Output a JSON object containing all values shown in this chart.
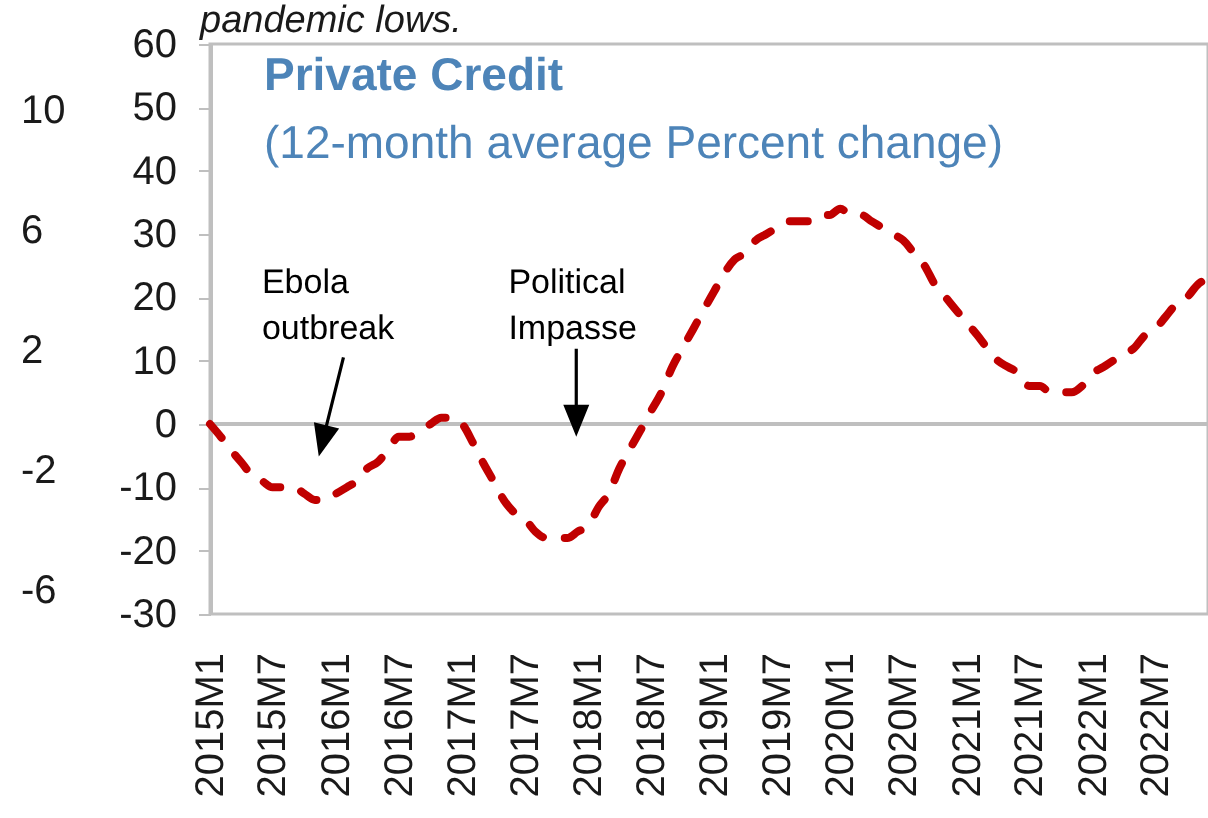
{
  "chart_data": {
    "type": "line",
    "title": "Private Credit",
    "subtitle": "(12-month average Percent change)",
    "annotations": [
      "pandemic lows.",
      "Ebola outbreak",
      "Political Impasse"
    ],
    "x": [
      "2015-01",
      "2015-02",
      "2015-03",
      "2015-04",
      "2015-05",
      "2015-06",
      "2015-07",
      "2015-08",
      "2015-09",
      "2015-10",
      "2015-11",
      "2015-12",
      "2016-01",
      "2016-02",
      "2016-03",
      "2016-04",
      "2016-05",
      "2016-06",
      "2016-07",
      "2016-08",
      "2016-09",
      "2016-10",
      "2016-11",
      "2016-12",
      "2017-01",
      "2017-02",
      "2017-03",
      "2017-04",
      "2017-05",
      "2017-06",
      "2017-07",
      "2017-08",
      "2017-09",
      "2017-10",
      "2017-11",
      "2017-12",
      "2018-01",
      "2018-02",
      "2018-03",
      "2018-04",
      "2018-05",
      "2018-06",
      "2018-07",
      "2018-08",
      "2018-09",
      "2018-10",
      "2018-11",
      "2018-12",
      "2019-01",
      "2019-02",
      "2019-03",
      "2019-04",
      "2019-05",
      "2019-06",
      "2019-07",
      "2019-08",
      "2019-09",
      "2019-10",
      "2019-11",
      "2019-12",
      "2020-01",
      "2020-02",
      "2020-03",
      "2020-04",
      "2020-05",
      "2020-06",
      "2020-07",
      "2020-08",
      "2020-09",
      "2020-10",
      "2020-11",
      "2020-12",
      "2021-01",
      "2021-02",
      "2021-03",
      "2021-04",
      "2021-05",
      "2021-06",
      "2021-07",
      "2021-08",
      "2021-09",
      "2021-10",
      "2021-11",
      "2021-12",
      "2022-01",
      "2022-02",
      "2022-03",
      "2022-04",
      "2022-05",
      "2022-06",
      "2022-07",
      "2022-08",
      "2022-09",
      "2022-10",
      "2022-11",
      "2022-12"
    ],
    "series": [
      {
        "color": "#c00000",
        "values": [
          0,
          -2,
          -4,
          -6,
          -8,
          -9,
          -10,
          -10,
          -10,
          -11,
          -12,
          -12,
          -11,
          -10,
          -9,
          -7,
          -6,
          -4,
          -2,
          -2,
          -1,
          0,
          1,
          1,
          0,
          -3,
          -6,
          -9,
          -12,
          -14,
          -15,
          -17,
          -18,
          -18,
          -18,
          -17,
          -16,
          -13,
          -11,
          -7,
          -4,
          -1,
          2,
          5,
          9,
          12,
          15,
          18,
          21,
          24,
          26,
          27,
          29,
          30,
          31,
          32,
          32,
          32,
          33,
          33,
          34,
          33,
          33,
          32,
          31,
          30,
          29,
          27,
          25,
          22,
          20,
          18,
          16,
          14,
          12,
          10,
          9,
          8,
          6,
          6,
          5,
          5,
          5,
          6,
          8,
          9,
          10,
          11,
          12,
          14,
          15,
          17,
          19,
          20,
          22,
          23
        ]
      }
    ],
    "xlim": [
      "2015-01",
      "2022-12"
    ],
    "xticks": [
      {
        "value": "2015-01",
        "label": "2015M1"
      },
      {
        "value": "2015-07",
        "label": "2015M7"
      },
      {
        "value": "2016-01",
        "label": "2016M1"
      },
      {
        "value": "2016-07",
        "label": "2016M7"
      },
      {
        "value": "2017-01",
        "label": "2017M1"
      },
      {
        "value": "2017-07",
        "label": "2017M7"
      },
      {
        "value": "2018-01",
        "label": "2018M1"
      },
      {
        "value": "2018-07",
        "label": "2018M7"
      },
      {
        "value": "2019-01",
        "label": "2019M1"
      },
      {
        "value": "2019-07",
        "label": "2019M7"
      },
      {
        "value": "2020-01",
        "label": "2020M1"
      },
      {
        "value": "2020-07",
        "label": "2020M7"
      },
      {
        "value": "2021-01",
        "label": "2021M1"
      },
      {
        "value": "2021-07",
        "label": "2021M7"
      },
      {
        "value": "2022-01",
        "label": "2022M1"
      },
      {
        "value": "2022-07",
        "label": "2022M7"
      }
    ],
    "ylim": [
      -30,
      60
    ],
    "yticks": [
      -30,
      -20,
      -10,
      0,
      10,
      20,
      30,
      40,
      50,
      60
    ],
    "y2lim": [
      -6.8,
      12.2
    ],
    "y2ticks": [
      -6,
      -2,
      2,
      6,
      10
    ],
    "ref_lines": [
      {
        "axis": "y",
        "value": 0,
        "color": "#bfbfbf"
      }
    ],
    "line_style": "dashed"
  }
}
